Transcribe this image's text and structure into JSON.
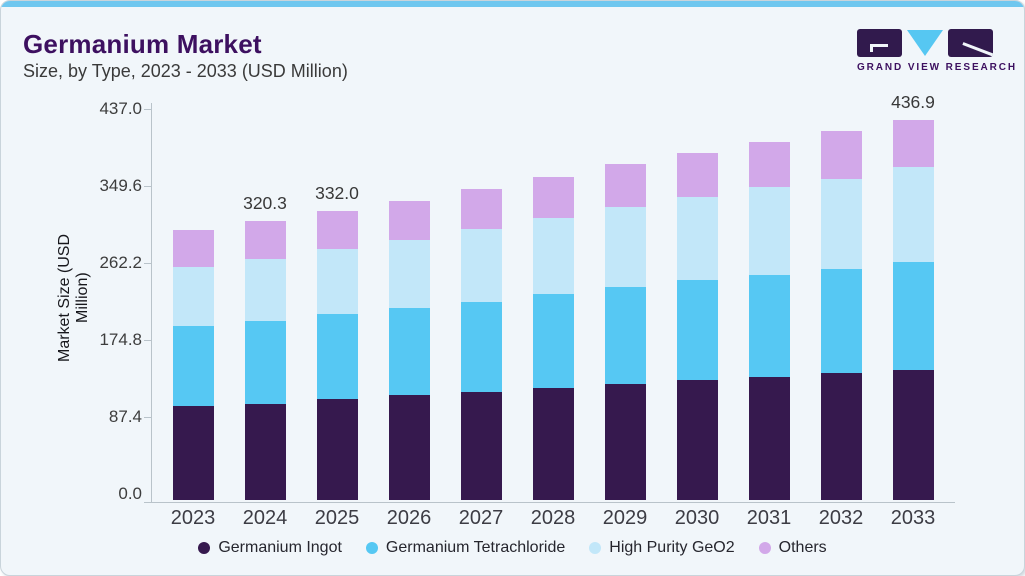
{
  "header": {
    "title": "Germanium Market",
    "subtitle": "Size, by Type, 2023 - 2033 (USD Million)"
  },
  "logo": {
    "text": "GRAND VIEW RESEARCH"
  },
  "colors": {
    "accent_top_bar": "#6fc7ef",
    "title": "#3d1060",
    "logo_purple": "#311a4d",
    "logo_triangle": "#56c7f2",
    "card_background": "#f1f6fa"
  },
  "chart_data": {
    "type": "bar",
    "stacked": true,
    "title": "Germanium Market",
    "subtitle": "Size, by Type, 2023 - 2033 (USD Million)",
    "xlabel": "",
    "ylabel": "Market Size (USD Million)",
    "categories": [
      "2023",
      "2024",
      "2025",
      "2026",
      "2027",
      "2028",
      "2029",
      "2030",
      "2031",
      "2032",
      "2033"
    ],
    "series": [
      {
        "name": "Germanium Ingot",
        "color": "#36194e",
        "values": [
          108.0,
          110.9,
          116.0,
          120.4,
          123.8,
          128.8,
          133.4,
          138.0,
          141.8,
          145.7,
          149.6
        ]
      },
      {
        "name": "Germanium Tetrachloride",
        "color": "#56c8f3",
        "values": [
          92.0,
          95.2,
          97.6,
          100.4,
          103.8,
          108.1,
          111.5,
          114.5,
          116.9,
          119.9,
          123.5
        ]
      },
      {
        "name": "High Purity GeO2",
        "color": "#c2e7f9",
        "values": [
          67.8,
          71.5,
          75.1,
          78.5,
          84.3,
          87.4,
          92.0,
          96.0,
          100.8,
          103.8,
          109.3
        ]
      },
      {
        "name": "Others",
        "color": "#d2a8e9",
        "values": [
          42.5,
          42.7,
          43.3,
          44.8,
          45.6,
          47.1,
          49.4,
          51.0,
          51.9,
          54.4,
          54.5
        ]
      }
    ],
    "totals": [
      310.3,
      320.3,
      332.0,
      344.1,
      357.5,
      371.4,
      386.3,
      399.5,
      411.4,
      423.8,
      436.9
    ],
    "total_labels": [
      "",
      "320.3",
      "332.0",
      "",
      "",
      "",
      "",
      "",
      "",
      "",
      "436.9"
    ],
    "y_ticks": [
      "0.0",
      "87.4",
      "174.8",
      "262.2",
      "349.6",
      "437.0"
    ],
    "ylim": [
      0,
      437
    ],
    "grid": false,
    "legend_position": "bottom"
  }
}
